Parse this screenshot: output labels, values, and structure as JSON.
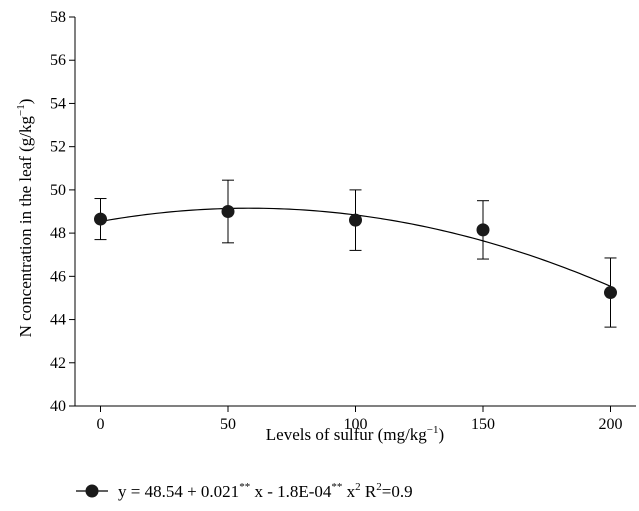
{
  "chart_data": {
    "type": "scatter",
    "xlabel": "Levels of sulfur (mg/kg",
    "xlabel_sup": "−1",
    "xlabel_end": ")",
    "ylabel": "N concentration in the leaf (g/kg",
    "ylabel_sup": "−1",
    "ylabel_end": ")",
    "xlim": [
      -10,
      210
    ],
    "ylim": [
      40,
      58
    ],
    "x_ticks": [
      0,
      50,
      100,
      150,
      200
    ],
    "x_tick_labels": [
      "0",
      "50",
      "100",
      "150",
      "200"
    ],
    "y_ticks": [
      40,
      42,
      44,
      46,
      48,
      50,
      52,
      54,
      56,
      58
    ],
    "y_tick_labels": [
      "40",
      "42",
      "44",
      "46",
      "48",
      "50",
      "52",
      "54",
      "56",
      "58"
    ],
    "grid": false,
    "legend_position": "bottom",
    "series": [
      {
        "points": [
          {
            "x": 0,
            "y": 48.65,
            "err_low": 47.7,
            "err_high": 49.6
          },
          {
            "x": 50,
            "y": 49.0,
            "err_low": 47.55,
            "err_high": 50.45
          },
          {
            "x": 100,
            "y": 48.6,
            "err_low": 47.2,
            "err_high": 50.0
          },
          {
            "x": 150,
            "y": 48.15,
            "err_low": 46.8,
            "err_high": 49.5
          },
          {
            "x": 200,
            "y": 45.25,
            "err_low": 43.65,
            "err_high": 46.85
          }
        ],
        "fit": {
          "intercept": 48.54,
          "b1": 0.021,
          "b2": -0.00018
        }
      }
    ],
    "legend": {
      "eq_a": "y = 48.54 + 0.021",
      "sup_a": "**",
      "eq_b": " x - 1.8E-04",
      "sup_b": "**",
      "eq_c": " x",
      "sup_c": "2",
      "eq_d": " R",
      "sup_d": "2",
      "eq_e": "=0.9"
    },
    "colors": {
      "marker": "#1a1a1a",
      "line": "#000000"
    }
  }
}
